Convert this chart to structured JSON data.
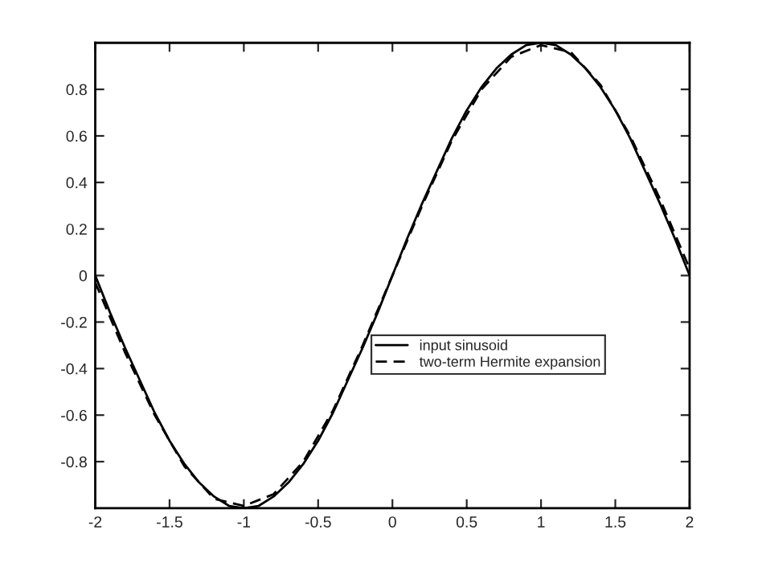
{
  "chart_data": {
    "type": "line",
    "xlim": [
      -2,
      2
    ],
    "ylim": [
      -1,
      1
    ],
    "xticks": [
      -2,
      -1.5,
      -1,
      -0.5,
      0,
      0.5,
      1,
      1.5,
      2
    ],
    "yticks": [
      -0.8,
      -0.6,
      -0.4,
      -0.2,
      0,
      0.2,
      0.4,
      0.6,
      0.8
    ],
    "grid": false,
    "legend": "center right",
    "series": [
      {
        "name": "input sinusoid",
        "color": "#000000",
        "line_style": "solid",
        "x": [
          -2,
          -1.9,
          -1.8,
          -1.7,
          -1.6,
          -1.5,
          -1.4,
          -1.3,
          -1.2,
          -1.1,
          -1,
          -0.9,
          -0.8,
          -0.7,
          -0.6,
          -0.5,
          -0.4,
          -0.3,
          -0.2,
          -0.1,
          0,
          0.1,
          0.2,
          0.3,
          0.4,
          0.5,
          0.6,
          0.7,
          0.8,
          0.9,
          1,
          1.1,
          1.2,
          1.3,
          1.4,
          1.5,
          1.6,
          1.7,
          1.8,
          1.9,
          2
        ],
        "values": [
          0,
          -0.16,
          -0.31,
          -0.45,
          -0.59,
          -0.71,
          -0.81,
          -0.89,
          -0.95,
          -0.99,
          -1,
          -0.99,
          -0.95,
          -0.89,
          -0.81,
          -0.71,
          -0.59,
          -0.45,
          -0.31,
          -0.16,
          0,
          0.16,
          0.31,
          0.45,
          0.59,
          0.71,
          0.81,
          0.89,
          0.95,
          0.99,
          1,
          0.99,
          0.95,
          0.89,
          0.81,
          0.71,
          0.59,
          0.45,
          0.31,
          0.16,
          0
        ]
      },
      {
        "name": "two-term Hermite expansion",
        "color": "#000000",
        "line_style": "dashed",
        "x": [
          -2,
          -1.8,
          -1.6,
          -1.4,
          -1.2,
          -1,
          -0.8,
          -0.6,
          -0.4,
          -0.2,
          0,
          0.2,
          0.4,
          0.6,
          0.8,
          1,
          1.2,
          1.4,
          1.6,
          1.8,
          2
        ],
        "values": [
          -0.03,
          -0.33,
          -0.6,
          -0.82,
          -0.96,
          -0.99,
          -0.94,
          -0.8,
          -0.58,
          -0.3,
          0,
          0.3,
          0.58,
          0.8,
          0.94,
          0.99,
          0.96,
          0.82,
          0.6,
          0.33,
          0.03
        ]
      }
    ]
  }
}
